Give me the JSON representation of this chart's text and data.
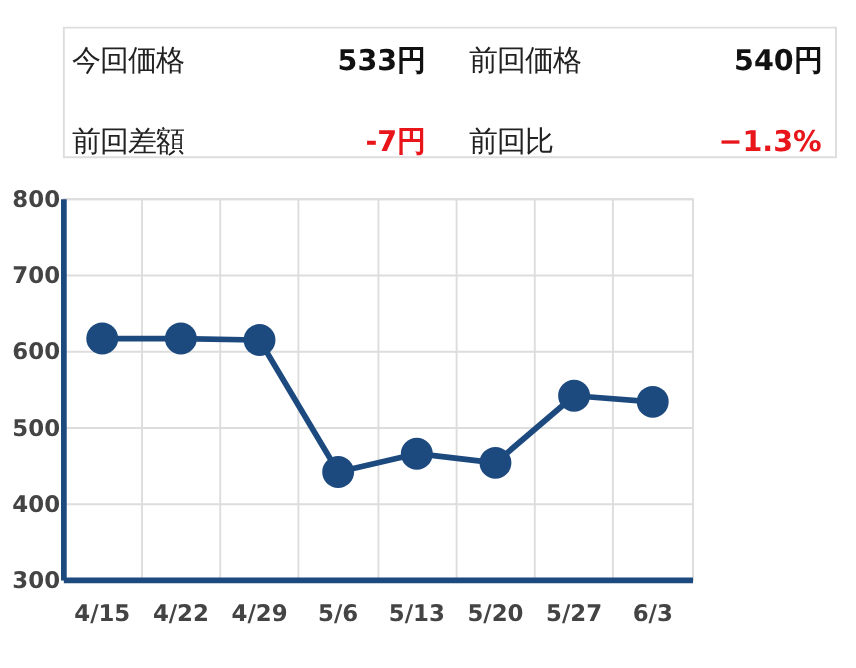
{
  "chart_data": [
    {
      "type": "other",
      "annotations": [
        "今回価格",
        "533円",
        "前回価格",
        "540円",
        "前回差額",
        "-7円",
        "前回比",
        "−1.3%"
      ]
    },
    {
      "type": "line",
      "categories": [
        "4/15",
        "4/22",
        "4/29",
        "5/6",
        "5/13",
        "5/20",
        "5/27",
        "6/3"
      ],
      "series": [
        {
          "color": "#1d4a7e",
          "values": [
            616,
            616,
            614,
            441,
            465,
            453,
            541,
            533
          ]
        }
      ],
      "ylim": [
        300,
        800
      ],
      "yticks": [
        300,
        400,
        500,
        600,
        700,
        800
      ],
      "grid": true,
      "marker": "circle",
      "line_style": "solid"
    }
  ]
}
